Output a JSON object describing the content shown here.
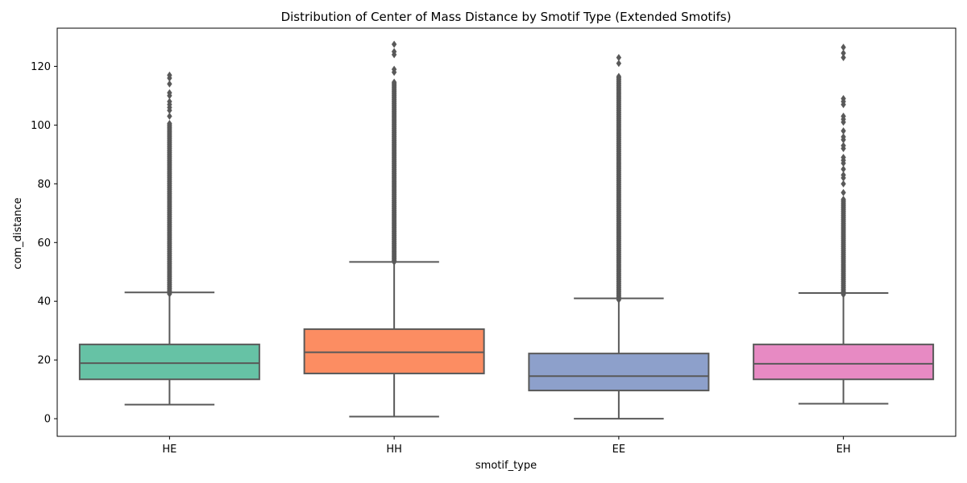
{
  "chart_data": {
    "type": "box",
    "title": "Distribution of Center of Mass Distance by Smotif Type (Extended Smotifs)",
    "xlabel": "smotif_type",
    "ylabel": "com_distance",
    "ylim": [
      -6,
      133
    ],
    "yticks": [
      0,
      20,
      40,
      60,
      80,
      100,
      120
    ],
    "categories": [
      "HE",
      "HH",
      "EE",
      "EH"
    ],
    "grid": false,
    "legend": "none",
    "box_edge_color": "#595959",
    "series": [
      {
        "category": "HE",
        "color": "#66c2a5",
        "whisker_low": 4.8,
        "q1": 13.4,
        "median": 18.9,
        "q3": 25.3,
        "whisker_high": 43.0,
        "outliers_range": [
          42.5,
          101
        ],
        "outliers_extra": [
          103,
          105,
          106,
          107,
          108,
          110,
          111,
          114,
          116,
          117
        ]
      },
      {
        "category": "HH",
        "color": "#fc8d62",
        "whisker_low": 0.7,
        "q1": 15.4,
        "median": 22.6,
        "q3": 30.5,
        "whisker_high": 53.4,
        "outliers_range": [
          53.4,
          115
        ],
        "outliers_extra": [
          118,
          119,
          124,
          125,
          127.5
        ]
      },
      {
        "category": "EE",
        "color": "#8da0cb",
        "whisker_low": 0.0,
        "q1": 9.6,
        "median": 14.5,
        "q3": 22.2,
        "whisker_high": 41.0,
        "outliers_range": [
          40.5,
          117
        ],
        "outliers_extra": [
          121,
          123
        ]
      },
      {
        "category": "EH",
        "color": "#e78ac3",
        "whisker_low": 5.1,
        "q1": 13.4,
        "median": 18.7,
        "q3": 25.3,
        "whisker_high": 42.8,
        "outliers_range": [
          42.3,
          75
        ],
        "outliers_extra": [
          77,
          80,
          82,
          83,
          85,
          87,
          88,
          89,
          92,
          93,
          95,
          96,
          98,
          101,
          102,
          103,
          107,
          108,
          109,
          123,
          124.5,
          126.5
        ]
      }
    ]
  }
}
